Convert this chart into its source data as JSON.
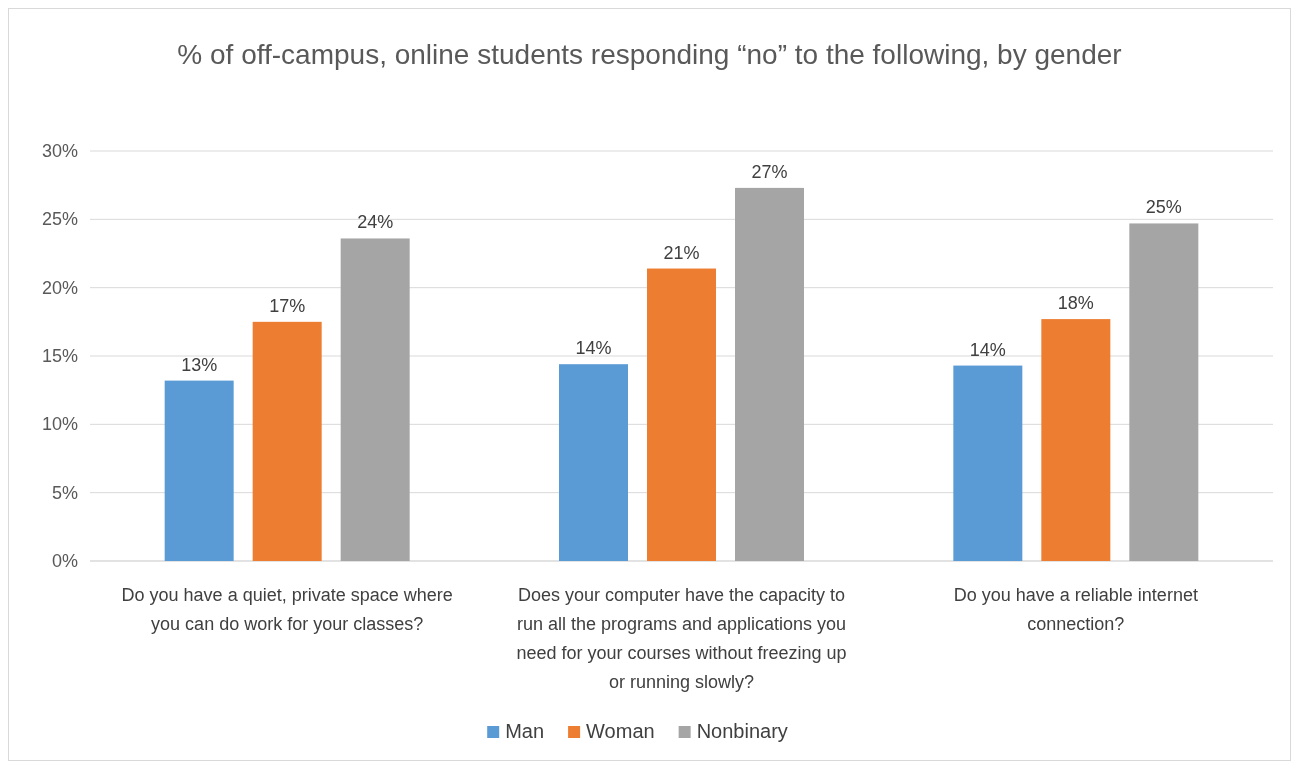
{
  "chart_data": {
    "type": "bar",
    "title": "% of off-campus, online students responding “no” to the following, by gender",
    "categories": [
      "Do you have a quiet, private space where you can do work for your classes?",
      "Does your computer have the capacity to run all the programs and applications you need for your courses without freezing up or running slowly?",
      "Do you have a reliable internet connection?"
    ],
    "series": [
      {
        "name": "Man",
        "color": "#5b9bd5",
        "values": [
          13.2,
          14.4,
          14.3
        ],
        "value_labels": [
          "13%",
          "14%",
          "14%"
        ]
      },
      {
        "name": "Woman",
        "color": "#ed7d31",
        "values": [
          17.5,
          21.4,
          17.7
        ],
        "value_labels": [
          "17%",
          "21%",
          "18%"
        ]
      },
      {
        "name": "Nonbinary",
        "color": "#a5a5a5",
        "values": [
          23.6,
          27.3,
          24.7
        ],
        "value_labels": [
          "24%",
          "27%",
          "25%"
        ]
      }
    ],
    "ylim": [
      0,
      30
    ],
    "yticks": [
      {
        "value": 0,
        "label": "0%"
      },
      {
        "value": 5,
        "label": "5%"
      },
      {
        "value": 10,
        "label": "10%"
      },
      {
        "value": 15,
        "label": "15%"
      },
      {
        "value": 20,
        "label": "20%"
      },
      {
        "value": 25,
        "label": "25%"
      },
      {
        "value": 30,
        "label": "30%"
      }
    ],
    "grid": "y",
    "legend": "bottom"
  }
}
